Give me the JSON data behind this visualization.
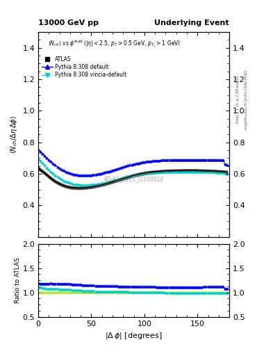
{
  "title_left": "13000 GeV pp",
  "title_right": "Underlying Event",
  "subtitle_display": "$\\langle N_{ch}\\rangle$ vs $\\phi^{lead}$ ($|\\eta| < 2.5$, $p_T > 0.5$ GeV, $p_{T_1} > 1$ GeV)",
  "ylabel_main": "$\\langle N_{ch} / \\Delta\\eta\\,\\Delta\\phi \\rangle$",
  "ylabel_ratio": "Ratio to ATLAS",
  "xlabel": "$|\\Delta\\,\\phi|$ [degrees]",
  "watermark": "ATLAS_2017_I1509919",
  "right_label1": "Rivet 3.1.10, ≥ 2.2M events",
  "right_label2": "mcplots.cern.ch [arXiv:1306.3436]",
  "ylim_main": [
    0.2,
    1.5
  ],
  "ylim_ratio": [
    0.5,
    2.0
  ],
  "yticks_main": [
    0.4,
    0.6,
    0.8,
    1.0,
    1.2,
    1.4
  ],
  "yticks_ratio": [
    0.5,
    1.0,
    1.5,
    2.0
  ],
  "xticks": [
    0,
    50,
    100,
    150
  ],
  "xmin": 0,
  "xmax": 180,
  "pythia_default_color": "#0000ff",
  "pythia_vincia_color": "#00cccc",
  "ratio_band_color": "#ccff66",
  "atlas_x": [
    0,
    2,
    4,
    6,
    8,
    10,
    12,
    14,
    16,
    18,
    20,
    22,
    24,
    26,
    28,
    30,
    32,
    34,
    36,
    38,
    40,
    42,
    44,
    46,
    48,
    50,
    52,
    54,
    56,
    58,
    60,
    62,
    64,
    66,
    68,
    70,
    72,
    74,
    76,
    78,
    80,
    82,
    84,
    86,
    88,
    90,
    92,
    94,
    96,
    98,
    100,
    102,
    104,
    106,
    108,
    110,
    112,
    114,
    116,
    118,
    120,
    122,
    124,
    126,
    128,
    130,
    132,
    134,
    136,
    138,
    140,
    142,
    144,
    146,
    148,
    150,
    152,
    154,
    156,
    158,
    160,
    162,
    164,
    166,
    168,
    170,
    172,
    174,
    176,
    178
  ],
  "atlas_y": [
    0.635,
    0.625,
    0.615,
    0.605,
    0.594,
    0.582,
    0.571,
    0.561,
    0.552,
    0.544,
    0.537,
    0.531,
    0.525,
    0.521,
    0.517,
    0.514,
    0.512,
    0.511,
    0.51,
    0.51,
    0.51,
    0.511,
    0.512,
    0.513,
    0.515,
    0.517,
    0.519,
    0.522,
    0.525,
    0.528,
    0.531,
    0.534,
    0.538,
    0.542,
    0.546,
    0.55,
    0.554,
    0.558,
    0.562,
    0.566,
    0.57,
    0.574,
    0.578,
    0.582,
    0.586,
    0.59,
    0.593,
    0.596,
    0.599,
    0.601,
    0.604,
    0.606,
    0.608,
    0.609,
    0.611,
    0.612,
    0.613,
    0.614,
    0.615,
    0.616,
    0.617,
    0.617,
    0.618,
    0.618,
    0.619,
    0.619,
    0.619,
    0.619,
    0.62,
    0.62,
    0.62,
    0.62,
    0.62,
    0.62,
    0.62,
    0.62,
    0.619,
    0.619,
    0.618,
    0.618,
    0.617,
    0.617,
    0.616,
    0.616,
    0.615,
    0.614,
    0.613,
    0.612,
    0.611,
    0.61
  ],
  "pythia_default_y": [
    0.755,
    0.742,
    0.729,
    0.716,
    0.703,
    0.69,
    0.678,
    0.666,
    0.655,
    0.645,
    0.636,
    0.628,
    0.621,
    0.614,
    0.609,
    0.604,
    0.6,
    0.597,
    0.594,
    0.592,
    0.591,
    0.59,
    0.59,
    0.59,
    0.591,
    0.592,
    0.594,
    0.596,
    0.599,
    0.601,
    0.604,
    0.608,
    0.611,
    0.615,
    0.619,
    0.623,
    0.627,
    0.631,
    0.635,
    0.639,
    0.643,
    0.647,
    0.651,
    0.655,
    0.659,
    0.662,
    0.665,
    0.668,
    0.671,
    0.673,
    0.675,
    0.677,
    0.679,
    0.68,
    0.682,
    0.683,
    0.684,
    0.685,
    0.686,
    0.687,
    0.688,
    0.688,
    0.689,
    0.689,
    0.69,
    0.69,
    0.69,
    0.69,
    0.69,
    0.69,
    0.69,
    0.69,
    0.69,
    0.69,
    0.69,
    0.69,
    0.69,
    0.69,
    0.69,
    0.69,
    0.689,
    0.689,
    0.689,
    0.689,
    0.689,
    0.688,
    0.688,
    0.688,
    0.66,
    0.658
  ],
  "pythia_vincia_y": [
    0.695,
    0.68,
    0.665,
    0.651,
    0.637,
    0.623,
    0.61,
    0.598,
    0.587,
    0.577,
    0.568,
    0.56,
    0.553,
    0.547,
    0.542,
    0.538,
    0.534,
    0.531,
    0.529,
    0.527,
    0.526,
    0.525,
    0.525,
    0.525,
    0.526,
    0.527,
    0.528,
    0.53,
    0.532,
    0.534,
    0.537,
    0.54,
    0.543,
    0.547,
    0.55,
    0.554,
    0.558,
    0.562,
    0.565,
    0.569,
    0.573,
    0.576,
    0.58,
    0.583,
    0.586,
    0.589,
    0.592,
    0.594,
    0.596,
    0.598,
    0.6,
    0.602,
    0.603,
    0.604,
    0.605,
    0.606,
    0.607,
    0.608,
    0.608,
    0.609,
    0.609,
    0.609,
    0.61,
    0.61,
    0.61,
    0.61,
    0.61,
    0.61,
    0.61,
    0.61,
    0.61,
    0.61,
    0.61,
    0.61,
    0.61,
    0.61,
    0.61,
    0.609,
    0.609,
    0.609,
    0.608,
    0.608,
    0.607,
    0.607,
    0.606,
    0.606,
    0.605,
    0.604,
    0.598,
    0.596
  ]
}
